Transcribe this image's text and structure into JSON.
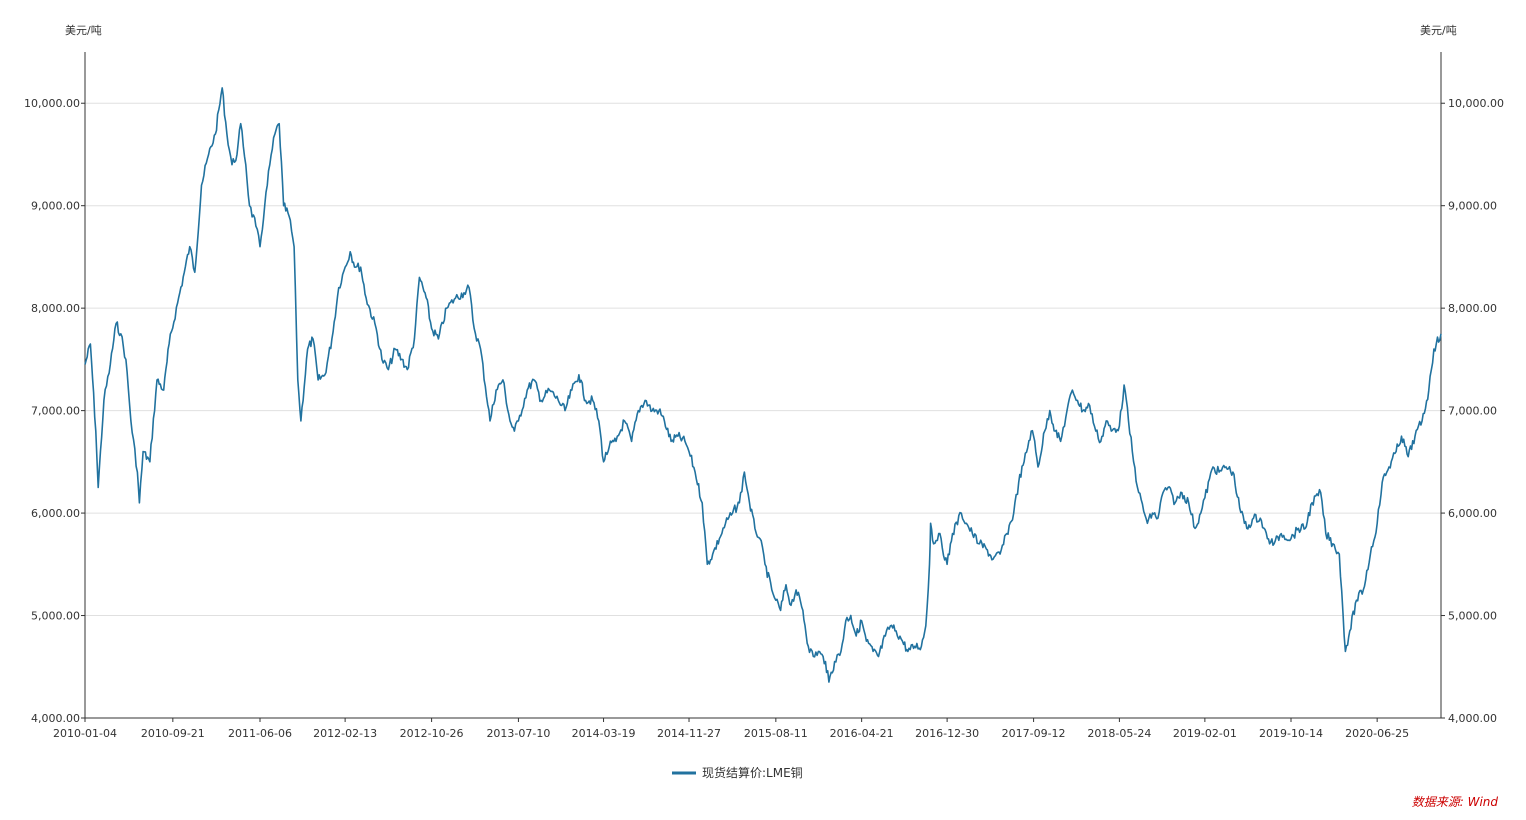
{
  "chart_data": {
    "type": "line",
    "left_unit": "美元/吨",
    "right_unit": "美元/吨",
    "ylim": [
      4000,
      10500
    ],
    "y_ticks": [
      4000,
      5000,
      6000,
      7000,
      8000,
      9000,
      10000
    ],
    "y_tick_labels": [
      "4,000.00",
      "5,000.00",
      "6,000.00",
      "7,000.00",
      "8,000.00",
      "9,000.00",
      "10,000.00"
    ],
    "x_range": [
      "2010-01-04",
      "2020-12-31"
    ],
    "x_tick_labels": [
      "2010-01-04",
      "2010-09-21",
      "2011-06-06",
      "2012-02-13",
      "2012-10-26",
      "2013-07-10",
      "2014-03-19",
      "2014-11-27",
      "2015-08-11",
      "2016-04-21",
      "2016-12-30",
      "2017-09-12",
      "2018-05-24",
      "2019-02-01",
      "2019-10-14",
      "2020-06-25"
    ],
    "grid": true,
    "legend_position": "bottom-center",
    "series": [
      {
        "name": "现货结算价:LME铜",
        "color": "#21729f",
        "points": [
          [
            "2010-01-04",
            7450
          ],
          [
            "2010-01-20",
            7650
          ],
          [
            "2010-02-05",
            6800
          ],
          [
            "2010-02-12",
            6250
          ],
          [
            "2010-03-01",
            7100
          ],
          [
            "2010-03-20",
            7450
          ],
          [
            "2010-04-06",
            7850
          ],
          [
            "2010-04-20",
            7750
          ],
          [
            "2010-05-05",
            7500
          ],
          [
            "2010-05-20",
            6900
          ],
          [
            "2010-06-08",
            6400
          ],
          [
            "2010-06-14",
            6100
          ],
          [
            "2010-06-25",
            6600
          ],
          [
            "2010-07-15",
            6500
          ],
          [
            "2010-08-05",
            7300
          ],
          [
            "2010-08-25",
            7200
          ],
          [
            "2010-09-10",
            7650
          ],
          [
            "2010-10-05",
            8050
          ],
          [
            "2010-10-25",
            8350
          ],
          [
            "2010-11-10",
            8600
          ],
          [
            "2010-11-25",
            8350
          ],
          [
            "2010-12-15",
            9200
          ],
          [
            "2011-01-05",
            9500
          ],
          [
            "2011-01-25",
            9700
          ],
          [
            "2011-02-14",
            10150
          ],
          [
            "2011-02-28",
            9700
          ],
          [
            "2011-03-15",
            9400
          ],
          [
            "2011-03-30",
            9500
          ],
          [
            "2011-04-10",
            9800
          ],
          [
            "2011-04-25",
            9400
          ],
          [
            "2011-05-06",
            9000
          ],
          [
            "2011-05-25",
            8800
          ],
          [
            "2011-06-06",
            8600
          ],
          [
            "2011-06-20",
            9000
          ],
          [
            "2011-07-05",
            9400
          ],
          [
            "2011-07-20",
            9700
          ],
          [
            "2011-08-02",
            9800
          ],
          [
            "2011-08-15",
            9000
          ],
          [
            "2011-08-31",
            8900
          ],
          [
            "2011-09-15",
            8600
          ],
          [
            "2011-09-26",
            7300
          ],
          [
            "2011-10-05",
            6900
          ],
          [
            "2011-10-25",
            7600
          ],
          [
            "2011-11-10",
            7700
          ],
          [
            "2011-11-25",
            7300
          ],
          [
            "2011-12-15",
            7350
          ],
          [
            "2012-01-05",
            7700
          ],
          [
            "2012-01-25",
            8200
          ],
          [
            "2012-02-13",
            8400
          ],
          [
            "2012-02-28",
            8550
          ],
          [
            "2012-03-15",
            8400
          ],
          [
            "2012-03-30",
            8400
          ],
          [
            "2012-04-15",
            8100
          ],
          [
            "2012-05-15",
            7800
          ],
          [
            "2012-06-01",
            7500
          ],
          [
            "2012-06-20",
            7400
          ],
          [
            "2012-07-10",
            7600
          ],
          [
            "2012-07-30",
            7500
          ],
          [
            "2012-08-15",
            7400
          ],
          [
            "2012-09-05",
            7700
          ],
          [
            "2012-09-20",
            8300
          ],
          [
            "2012-10-10",
            8100
          ],
          [
            "2012-10-26",
            7800
          ],
          [
            "2012-11-15",
            7700
          ],
          [
            "2012-12-10",
            8000
          ],
          [
            "2013-01-05",
            8100
          ],
          [
            "2013-01-30",
            8150
          ],
          [
            "2013-02-14",
            8200
          ],
          [
            "2013-03-01",
            7800
          ],
          [
            "2013-03-20",
            7600
          ],
          [
            "2013-04-17",
            6900
          ],
          [
            "2013-05-05",
            7200
          ],
          [
            "2013-05-25",
            7300
          ],
          [
            "2013-06-15",
            6900
          ],
          [
            "2013-06-28",
            6800
          ],
          [
            "2013-07-10",
            6900
          ],
          [
            "2013-08-05",
            7200
          ],
          [
            "2013-08-25",
            7300
          ],
          [
            "2013-09-15",
            7100
          ],
          [
            "2013-10-10",
            7200
          ],
          [
            "2013-11-05",
            7100
          ],
          [
            "2013-11-25",
            7000
          ],
          [
            "2013-12-15",
            7200
          ],
          [
            "2014-01-05",
            7350
          ],
          [
            "2014-01-25",
            7100
          ],
          [
            "2014-02-15",
            7100
          ],
          [
            "2014-03-05",
            6900
          ],
          [
            "2014-03-19",
            6500
          ],
          [
            "2014-04-05",
            6650
          ],
          [
            "2014-04-25",
            6700
          ],
          [
            "2014-05-20",
            6900
          ],
          [
            "2014-06-10",
            6700
          ],
          [
            "2014-06-30",
            7000
          ],
          [
            "2014-07-20",
            7100
          ],
          [
            "2014-08-10",
            7000
          ],
          [
            "2014-08-30",
            7000
          ],
          [
            "2014-09-15",
            6900
          ],
          [
            "2014-10-05",
            6700
          ],
          [
            "2014-10-25",
            6750
          ],
          [
            "2014-11-15",
            6700
          ],
          [
            "2014-11-27",
            6600
          ],
          [
            "2014-12-15",
            6400
          ],
          [
            "2015-01-05",
            6100
          ],
          [
            "2015-01-20",
            5500
          ],
          [
            "2015-02-05",
            5600
          ],
          [
            "2015-02-25",
            5750
          ],
          [
            "2015-03-15",
            5900
          ],
          [
            "2015-04-05",
            6000
          ],
          [
            "2015-04-25",
            6100
          ],
          [
            "2015-05-10",
            6400
          ],
          [
            "2015-05-25",
            6100
          ],
          [
            "2015-06-10",
            5850
          ],
          [
            "2015-06-25",
            5750
          ],
          [
            "2015-07-10",
            5500
          ],
          [
            "2015-07-30",
            5250
          ],
          [
            "2015-08-11",
            5150
          ],
          [
            "2015-08-25",
            5050
          ],
          [
            "2015-09-10",
            5300
          ],
          [
            "2015-09-25",
            5100
          ],
          [
            "2015-10-10",
            5250
          ],
          [
            "2015-10-30",
            5050
          ],
          [
            "2015-11-15",
            4700
          ],
          [
            "2015-11-30",
            4600
          ],
          [
            "2015-12-15",
            4650
          ],
          [
            "2016-01-05",
            4550
          ],
          [
            "2016-01-15",
            4350
          ],
          [
            "2016-02-01",
            4550
          ],
          [
            "2016-02-20",
            4650
          ],
          [
            "2016-03-05",
            4950
          ],
          [
            "2016-03-20",
            5000
          ],
          [
            "2016-04-05",
            4800
          ],
          [
            "2016-04-21",
            4950
          ],
          [
            "2016-05-05",
            4750
          ],
          [
            "2016-05-25",
            4650
          ],
          [
            "2016-06-10",
            4600
          ],
          [
            "2016-06-30",
            4800
          ],
          [
            "2016-07-15",
            4900
          ],
          [
            "2016-08-01",
            4850
          ],
          [
            "2016-08-20",
            4750
          ],
          [
            "2016-09-05",
            4650
          ],
          [
            "2016-09-25",
            4700
          ],
          [
            "2016-10-15",
            4700
          ],
          [
            "2016-10-28",
            4900
          ],
          [
            "2016-11-08",
            5500
          ],
          [
            "2016-11-11",
            5900
          ],
          [
            "2016-11-20",
            5700
          ],
          [
            "2016-12-05",
            5800
          ],
          [
            "2016-12-30",
            5500
          ],
          [
            "2017-01-15",
            5800
          ],
          [
            "2017-02-10",
            6000
          ],
          [
            "2017-02-25",
            5900
          ],
          [
            "2017-03-15",
            5800
          ],
          [
            "2017-04-05",
            5700
          ],
          [
            "2017-04-25",
            5650
          ],
          [
            "2017-05-15",
            5550
          ],
          [
            "2017-06-05",
            5600
          ],
          [
            "2017-06-25",
            5800
          ],
          [
            "2017-07-15",
            6000
          ],
          [
            "2017-07-30",
            6300
          ],
          [
            "2017-08-15",
            6500
          ],
          [
            "2017-09-05",
            6800
          ],
          [
            "2017-09-12",
            6750
          ],
          [
            "2017-09-25",
            6450
          ],
          [
            "2017-10-15",
            6800
          ],
          [
            "2017-10-30",
            7000
          ],
          [
            "2017-11-15",
            6800
          ],
          [
            "2017-12-01",
            6700
          ],
          [
            "2017-12-20",
            7000
          ],
          [
            "2018-01-05",
            7200
          ],
          [
            "2018-01-20",
            7100
          ],
          [
            "2018-02-05",
            7000
          ],
          [
            "2018-02-25",
            7050
          ],
          [
            "2018-03-15",
            6800
          ],
          [
            "2018-03-30",
            6700
          ],
          [
            "2018-04-15",
            6900
          ],
          [
            "2018-04-30",
            6800
          ],
          [
            "2018-05-24",
            6850
          ],
          [
            "2018-06-07",
            7250
          ],
          [
            "2018-06-20",
            6900
          ],
          [
            "2018-07-05",
            6500
          ],
          [
            "2018-07-20",
            6200
          ],
          [
            "2018-08-15",
            5900
          ],
          [
            "2018-08-30",
            6000
          ],
          [
            "2018-09-15",
            5950
          ],
          [
            "2018-09-30",
            6200
          ],
          [
            "2018-10-15",
            6250
          ],
          [
            "2018-11-05",
            6100
          ],
          [
            "2018-11-25",
            6200
          ],
          [
            "2018-12-15",
            6100
          ],
          [
            "2019-01-03",
            5850
          ],
          [
            "2019-01-20",
            6000
          ],
          [
            "2019-02-01",
            6150
          ],
          [
            "2019-02-25",
            6450
          ],
          [
            "2019-03-15",
            6400
          ],
          [
            "2019-04-05",
            6450
          ],
          [
            "2019-04-25",
            6400
          ],
          [
            "2019-05-15",
            6050
          ],
          [
            "2019-06-05",
            5850
          ],
          [
            "2019-06-25",
            5950
          ],
          [
            "2019-07-15",
            5950
          ],
          [
            "2019-08-05",
            5750
          ],
          [
            "2019-08-25",
            5700
          ],
          [
            "2019-09-15",
            5800
          ],
          [
            "2019-10-14",
            5750
          ],
          [
            "2019-11-05",
            5850
          ],
          [
            "2019-11-25",
            5850
          ],
          [
            "2019-12-15",
            6100
          ],
          [
            "2020-01-10",
            6200
          ],
          [
            "2020-01-25",
            5800
          ],
          [
            "2020-02-15",
            5700
          ],
          [
            "2020-03-05",
            5600
          ],
          [
            "2020-03-23",
            4650
          ],
          [
            "2020-04-05",
            4850
          ],
          [
            "2020-04-25",
            5150
          ],
          [
            "2020-05-15",
            5250
          ],
          [
            "2020-06-05",
            5600
          ],
          [
            "2020-06-25",
            5900
          ],
          [
            "2020-07-10",
            6300
          ],
          [
            "2020-07-30",
            6450
          ],
          [
            "2020-08-20",
            6600
          ],
          [
            "2020-09-05",
            6750
          ],
          [
            "2020-09-25",
            6550
          ],
          [
            "2020-10-15",
            6750
          ],
          [
            "2020-11-05",
            6900
          ],
          [
            "2020-11-25",
            7200
          ],
          [
            "2020-12-10",
            7600
          ],
          [
            "2020-12-31",
            7750
          ]
        ]
      }
    ],
    "source_note": "数据来源: Wind"
  }
}
